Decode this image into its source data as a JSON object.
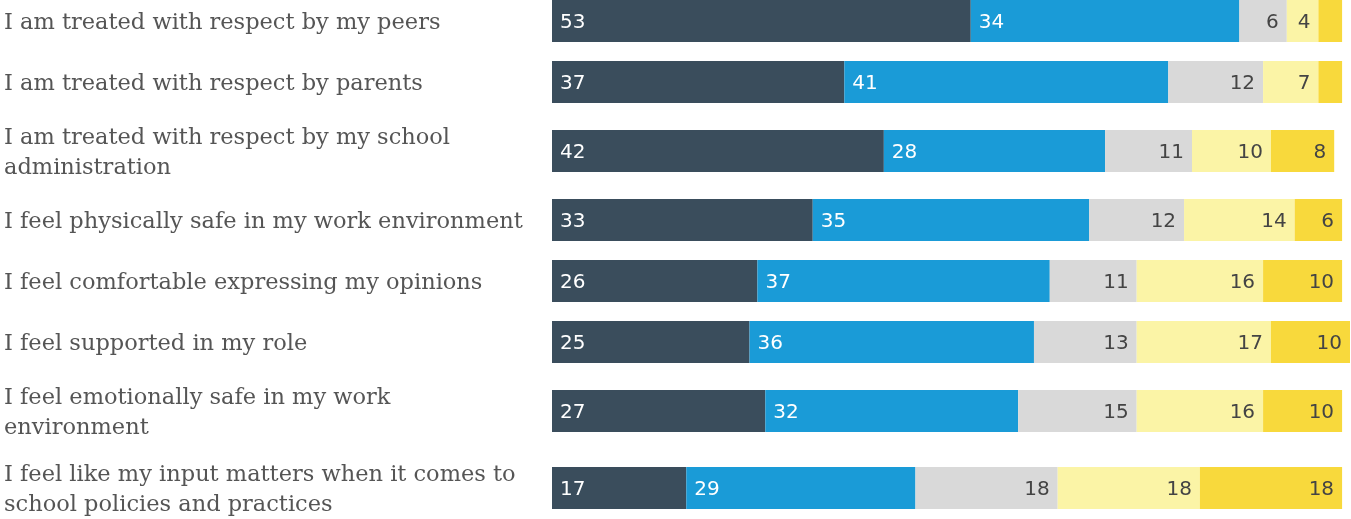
{
  "chart_data": {
    "type": "bar",
    "orientation": "horizontal",
    "stacked": true,
    "categories": [
      "I am treated with respect by my peers",
      "I am treated with respect by parents",
      "I am treated with respect by my school administration",
      "I feel physically safe in my work environment",
      "I feel comfortable expressing my opinions",
      "I feel supported in my role",
      "I feel emotionally safe in my work environment",
      "I feel like my input matters when it comes to school policies and practices"
    ],
    "series": [
      {
        "color": "#3a4d5c",
        "values": [
          53,
          37,
          42,
          33,
          26,
          25,
          27,
          17
        ],
        "value_labels": [
          "53",
          "37",
          "42",
          "33",
          "26",
          "25",
          "27",
          "17"
        ]
      },
      {
        "color": "#1a9bd7",
        "values": [
          34,
          41,
          28,
          35,
          37,
          36,
          32,
          29
        ],
        "value_labels": [
          "34",
          "41",
          "28",
          "35",
          "37",
          "36",
          "32",
          "29"
        ]
      },
      {
        "color": "#d9d9d9",
        "values": [
          6,
          12,
          11,
          12,
          11,
          13,
          15,
          18
        ],
        "value_labels": [
          "6",
          "12",
          "11",
          "12",
          "11",
          "13",
          "15",
          "18"
        ]
      },
      {
        "color": "#fbf4a6",
        "values": [
          4,
          7,
          10,
          14,
          16,
          17,
          16,
          18
        ],
        "value_labels": [
          "4",
          "7",
          "10",
          "14",
          "16",
          "17",
          "16",
          "18"
        ]
      },
      {
        "color": "#f8d93c",
        "values": [
          3,
          3,
          8,
          6,
          10,
          10,
          10,
          18
        ],
        "value_labels": [
          null,
          null,
          "8",
          "6",
          "10",
          "10",
          "10",
          "18"
        ]
      }
    ]
  }
}
